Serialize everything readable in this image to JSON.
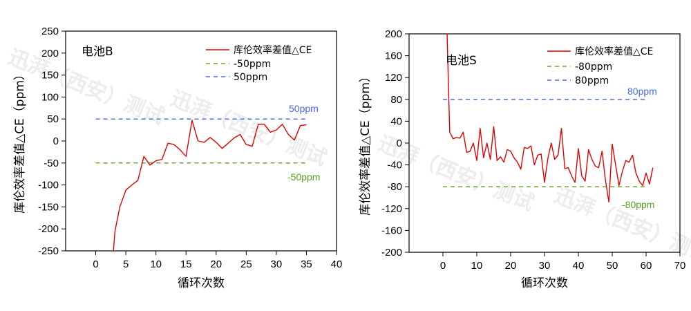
{
  "watermark": "迅湃（西安）测试",
  "colors": {
    "series": "#e00000",
    "lower_ref": "#6aaa2a",
    "upper_ref": "#4a6fe8",
    "lower_text": "#5aa020",
    "upper_text": "#4466ee"
  },
  "chart_data": [
    {
      "type": "line",
      "title": "电池B",
      "xlabel": "循环次数",
      "ylabel": "库伦效率差值△CE（ppm）",
      "xlim": [
        -5,
        40
      ],
      "ylim": [
        -250,
        250
      ],
      "xticks": [
        0,
        5,
        10,
        15,
        20,
        25,
        30,
        35,
        40
      ],
      "yticks": [
        -250,
        -200,
        -150,
        -100,
        -50,
        0,
        50,
        100,
        150,
        200,
        250
      ],
      "series": [
        {
          "name": "库伦效率差值△CE",
          "x": [
            2.9,
            3.2,
            4,
            5,
            6,
            7,
            8,
            9,
            10,
            11,
            12,
            13,
            14,
            15,
            16,
            17,
            18,
            19,
            20,
            21,
            22,
            23,
            24,
            25,
            26,
            27,
            28,
            29,
            30,
            31,
            32,
            33,
            34,
            35
          ],
          "y": [
            -255,
            -205,
            -150,
            -112,
            -100,
            -90,
            -35,
            -55,
            -45,
            -42,
            -5,
            -8,
            -20,
            -35,
            47,
            0,
            -3,
            8,
            -3,
            -17,
            -5,
            7,
            15,
            -8,
            -12,
            38,
            38,
            20,
            25,
            38,
            15,
            2,
            35,
            37
          ]
        }
      ],
      "reference_lines": [
        {
          "name": "-50ppm",
          "y": -50,
          "x_range": [
            0,
            35
          ],
          "label": "-50ppm"
        },
        {
          "name": "50ppm",
          "y": 50,
          "x_range": [
            0,
            35
          ],
          "label": "50ppm"
        }
      ]
    },
    {
      "type": "line",
      "title": "电池S",
      "xlabel": "循环次数",
      "ylabel": "库伦效率差值△CE（ppm）",
      "xlim": [
        -10,
        70
      ],
      "ylim": [
        -200,
        200
      ],
      "xticks": [
        0,
        10,
        20,
        30,
        40,
        50,
        60,
        70
      ],
      "yticks": [
        -200,
        -160,
        -120,
        -80,
        -40,
        0,
        40,
        80,
        120,
        160,
        200
      ],
      "series": [
        {
          "name": "库伦效率差值△CE",
          "x": [
            1.2,
            2,
            3,
            4,
            5,
            6,
            7,
            8,
            9,
            10,
            11,
            12,
            13,
            14,
            15,
            16,
            17,
            18,
            19,
            20,
            21,
            22,
            23,
            24,
            25,
            26,
            27,
            28,
            29,
            30,
            31,
            32,
            33,
            34,
            35,
            36,
            37,
            38,
            39,
            40,
            41,
            42,
            43,
            44,
            45,
            46,
            47,
            48,
            49,
            50,
            51,
            52,
            53,
            54,
            55,
            56,
            57,
            58,
            59,
            60,
            61,
            62
          ],
          "y": [
            205,
            20,
            8,
            10,
            9,
            20,
            -17,
            -15,
            0,
            -32,
            27,
            -27,
            0,
            -30,
            30,
            -32,
            -25,
            -35,
            -12,
            -15,
            -27,
            -35,
            -48,
            -8,
            -10,
            -5,
            -40,
            -22,
            -20,
            -72,
            -28,
            0,
            -30,
            -22,
            27,
            -47,
            -45,
            -60,
            -72,
            -10,
            -60,
            -70,
            -12,
            -30,
            -42,
            -45,
            -15,
            -68,
            -108,
            -2,
            -40,
            -78,
            -52,
            -32,
            -35,
            -22,
            -55,
            -70,
            -78,
            -55,
            -75,
            -45
          ]
        }
      ],
      "reference_lines": [
        {
          "name": "-80ppm",
          "y": -80,
          "x_range": [
            0,
            60
          ],
          "label": "-80ppm"
        },
        {
          "name": "80ppm",
          "y": 80,
          "x_range": [
            0,
            60
          ],
          "label": "80ppm"
        }
      ]
    }
  ]
}
